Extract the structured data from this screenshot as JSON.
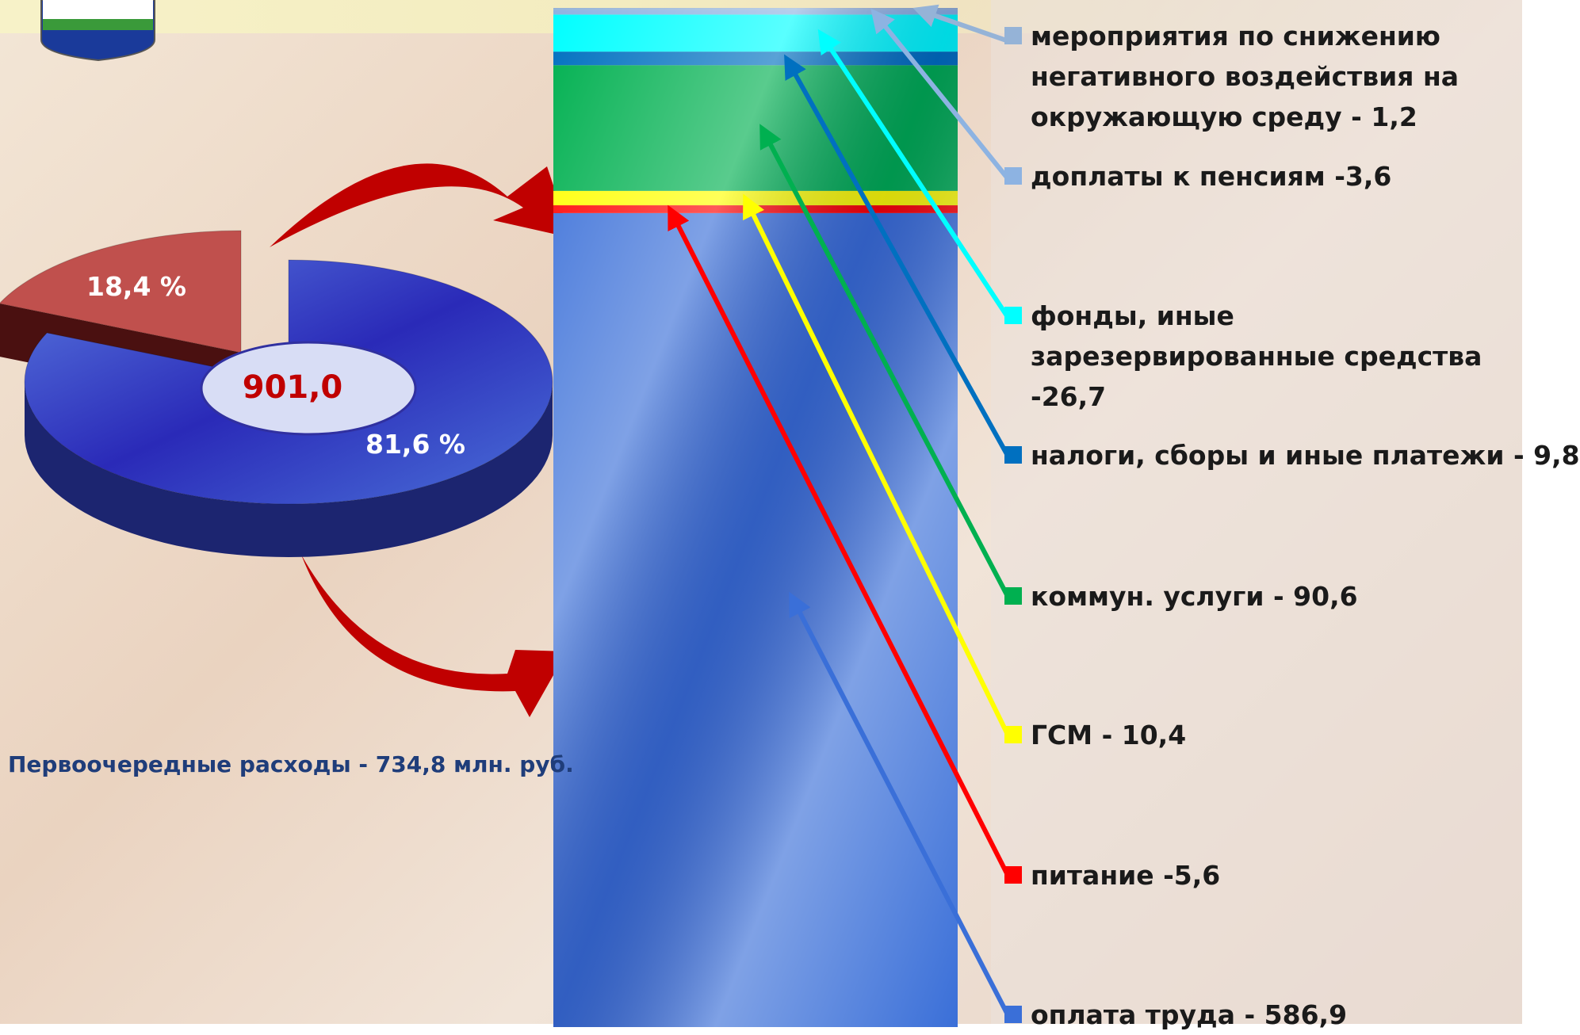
{
  "chart_data": [
    {
      "type": "pie",
      "values": [
        18.4,
        81.6
      ],
      "value_labels": [
        "18,4 %",
        "81,6 %"
      ],
      "colors": [
        "#c0504d",
        "#3344cc"
      ],
      "center_label": "901,0",
      "caption": "Первоочередные расходы  - 734,8  млн. руб."
    },
    {
      "type": "stacked-bar",
      "categories": [
        "мероприятия по снижению негативного воздействия на окружающую среду - 1,2",
        "доплаты к пенсиям -3,6",
        "фонды, иные зарезервированные средства -26,7",
        "налоги, сборы и иные платежи  - 9,8",
        " коммун. услуги - 90,6",
        "ГСМ - 10,4",
        "питание -5,6",
        "оплата труда - 586,9"
      ],
      "values": [
        1.2,
        3.6,
        26.7,
        9.8,
        90.6,
        10.4,
        5.6,
        586.9
      ],
      "colors": [
        "#95b3d7",
        "#8db3e2",
        "#00ffff",
        "#0070c0",
        "#00b050",
        "#ffff00",
        "#ff0000",
        "#3a6fd8"
      ]
    }
  ]
}
